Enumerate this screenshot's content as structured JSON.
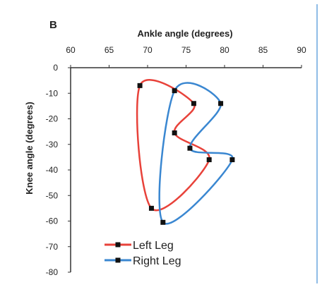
{
  "chart_data": {
    "type": "line",
    "panel_label": "B",
    "xlabel": "Ankle angle (degrees)",
    "ylabel": "Knee angle (degrees)",
    "xlim": [
      60,
      90
    ],
    "ylim": [
      -80,
      0
    ],
    "xticks": [
      "60",
      "65",
      "70",
      "75",
      "80",
      "85",
      "90"
    ],
    "yticks": [
      "0",
      "-10",
      "-20",
      "-30",
      "-40",
      "-50",
      "-60",
      "-70",
      "-80"
    ],
    "x_axis_position": "top",
    "grid": false,
    "legend_position": "bottom-left",
    "series": [
      {
        "name": "Left Leg",
        "color": "#e8423a",
        "points": [
          [
            69,
            -7
          ],
          [
            76,
            -14
          ],
          [
            73.5,
            -25.5
          ],
          [
            78,
            -36
          ],
          [
            70.5,
            -55
          ]
        ],
        "closed": true
      },
      {
        "name": "Right Leg",
        "color": "#3a87d1",
        "points": [
          [
            73.5,
            -9
          ],
          [
            79.5,
            -14
          ],
          [
            75.5,
            -31.5
          ],
          [
            81,
            -36
          ],
          [
            72,
            -60.5
          ]
        ],
        "closed": true
      }
    ]
  },
  "frame": {
    "right_border_color": "#8fbce6"
  }
}
